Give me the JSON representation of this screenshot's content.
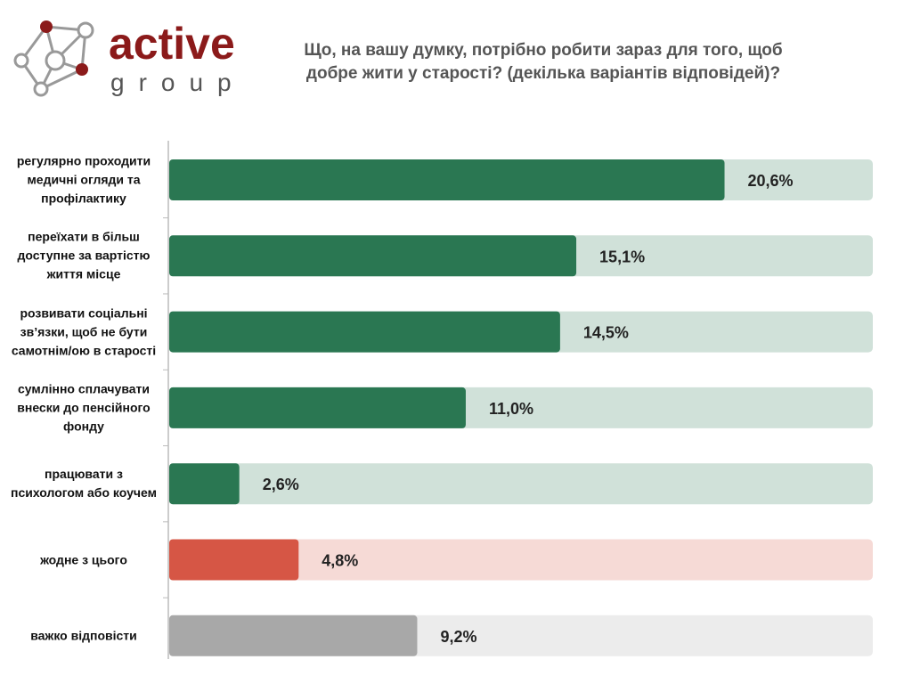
{
  "logo": {
    "name": "active",
    "sub": "group"
  },
  "chart_data": {
    "type": "hbar",
    "title": "Що, на вашу думку, потрібно робити зараз для того, щоб добре жити у старості? (декілька варіантів відповідей)?",
    "categories": [
      "регулярно проходити медичні огляди та профілактику",
      "переїхати в більш доступне за вартістю життя місце",
      "розвивати соціальні зв’язки, щоб не бути самотнім/ою в старості",
      "сумлінно сплачувати внески до пенсійного фонду",
      "працювати з психологом або коучем",
      "жодне з цього",
      "важко відповісти"
    ],
    "values": [
      20.6,
      15.1,
      14.5,
      11.0,
      2.6,
      4.8,
      9.2
    ],
    "value_labels": [
      "20,6%",
      "15,1%",
      "14,5%",
      "11,0%",
      "2,6%",
      "4,8%",
      "9,2%"
    ],
    "colors": [
      "#2a7752",
      "#2a7752",
      "#2a7752",
      "#2a7752",
      "#2a7752",
      "#d65645",
      "#a8a8a8"
    ],
    "xlim": [
      0,
      26.1
    ]
  }
}
